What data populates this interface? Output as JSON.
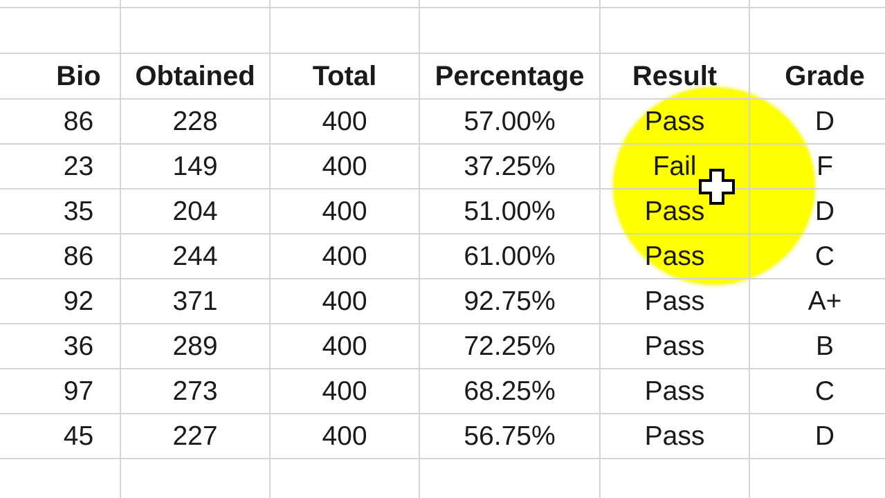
{
  "spreadsheet": {
    "headers": [
      "Bio",
      "Obtained",
      "Total",
      "Percentage",
      "Result",
      "Grade"
    ],
    "rows": [
      [
        "86",
        "228",
        "400",
        "57.00%",
        "Pass",
        "D"
      ],
      [
        "23",
        "149",
        "400",
        "37.25%",
        "Fail",
        "F"
      ],
      [
        "35",
        "204",
        "400",
        "51.00%",
        "Pass",
        "D"
      ],
      [
        "86",
        "244",
        "400",
        "61.00%",
        "Pass",
        "C"
      ],
      [
        "92",
        "371",
        "400",
        "92.75%",
        "Pass",
        "A+"
      ],
      [
        "36",
        "289",
        "400",
        "72.25%",
        "Pass",
        "B"
      ],
      [
        "97",
        "273",
        "400",
        "68.25%",
        "Pass",
        "C"
      ],
      [
        "45",
        "227",
        "400",
        "56.75%",
        "Pass",
        "D"
      ]
    ],
    "highlight_color": "#ffff00",
    "gridline_color": "#d4d4d4"
  },
  "cursor": {
    "icon": "excel-cell-select-cross-cursor-icon"
  }
}
